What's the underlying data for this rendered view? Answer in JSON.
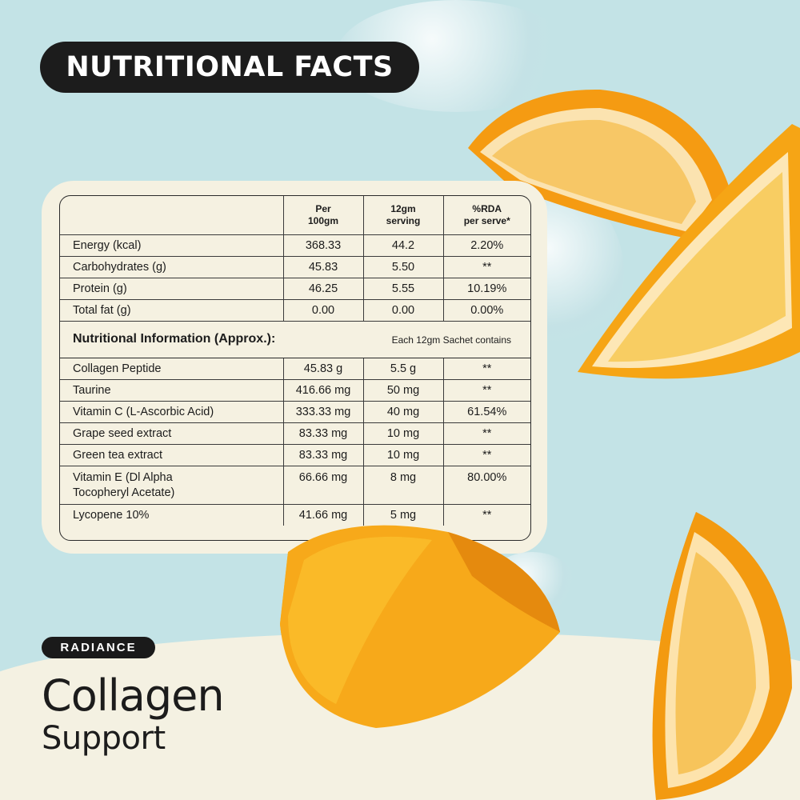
{
  "header": {
    "title": "NUTRITIONAL FACTS"
  },
  "table": {
    "columns": [
      "",
      "Per 100gm",
      "12gm serving",
      "%RDA per serve*"
    ],
    "column_lines": [
      [
        "Per",
        "100gm"
      ],
      [
        "12gm",
        "serving"
      ],
      [
        "%RDA",
        "per serve*"
      ]
    ],
    "rows": [
      {
        "label": "Energy (kcal)",
        "per100": "368.33",
        "serving": "44.2",
        "rda": "2.20%"
      },
      {
        "label": "Carbohydrates (g)",
        "per100": "45.83",
        "serving": "5.50",
        "rda": "**"
      },
      {
        "label": "Protein (g)",
        "per100": "46.25",
        "serving": "5.55",
        "rda": "10.19%"
      },
      {
        "label": "Total fat (g)",
        "per100": "0.00",
        "serving": "0.00",
        "rda": "0.00%"
      }
    ],
    "section": {
      "title": "Nutritional Information (Approx.):",
      "note": "Each 12gm Sachet contains"
    },
    "ingredients": [
      {
        "label": "Collagen Peptide",
        "per100": "45.83 g",
        "serving": "5.5 g",
        "rda": "**"
      },
      {
        "label": "Taurine",
        "per100": "416.66 mg",
        "serving": "50 mg",
        "rda": "**"
      },
      {
        "label": "Vitamin C (L-Ascorbic Acid)",
        "per100": "333.33 mg",
        "serving": "40 mg",
        "rda": "61.54%"
      },
      {
        "label": "Grape seed extract",
        "per100": "83.33 mg",
        "serving": "10 mg",
        "rda": "**"
      },
      {
        "label": "Green tea extract",
        "per100": "83.33 mg",
        "serving": "10 mg",
        "rda": "**"
      },
      {
        "label_lines": [
          "Vitamin E (Dl Alpha",
          "Tocopheryl Acetate)"
        ],
        "per100": "66.66 mg",
        "serving": "8 mg",
        "rda": "80.00%"
      },
      {
        "label": "Lycopene 10%",
        "per100": "41.66 mg",
        "serving": "5 mg",
        "rda": "**"
      }
    ]
  },
  "product": {
    "badge": "RADIANCE",
    "name": "Collagen",
    "subtitle": "Support"
  },
  "colors": {
    "background": "#c3e3e6",
    "card": "#f5f1e1",
    "dark": "#1c1c1c",
    "orange": "#f59b12"
  },
  "icons": [
    "orange-slice-icon",
    "water-splash-icon"
  ]
}
